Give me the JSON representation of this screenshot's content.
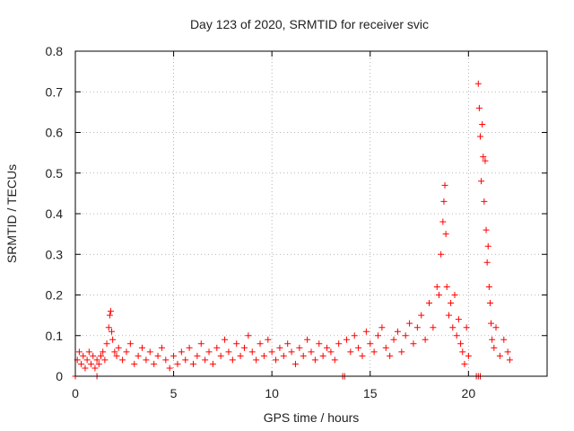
{
  "chart_data": {
    "type": "scatter",
    "title": "Day 123 of 2020, SRMTID for receiver svic",
    "xlabel": "GPS time / hours",
    "ylabel": "SRMTID / TECUs",
    "xlim": [
      0,
      24
    ],
    "ylim": [
      0,
      0.8
    ],
    "xticks": [
      0,
      5,
      10,
      15,
      20
    ],
    "xtick_labels": [
      "0",
      "5",
      "10",
      "15",
      "20"
    ],
    "yticks": [
      0,
      0.1,
      0.2,
      0.3,
      0.4,
      0.5,
      0.6,
      0.7,
      0.8
    ],
    "ytick_labels": [
      "0",
      "0.1",
      "0.2",
      "0.3",
      "0.4",
      "0.5",
      "0.6",
      "0.7",
      "0.8"
    ],
    "grid": true,
    "marker": "+",
    "color": "#ff0000",
    "series": [
      {
        "name": "SRMTID",
        "x": [
          0.1,
          0.2,
          0.3,
          0.4,
          0.5,
          0.6,
          0.7,
          0.8,
          0.9,
          1.0,
          1.1,
          1.2,
          1.3,
          1.4,
          1.5,
          1.6,
          1.7,
          1.75,
          1.8,
          1.85,
          1.9,
          2.0,
          2.1,
          2.2,
          2.4,
          2.6,
          2.8,
          3.0,
          3.2,
          3.4,
          3.6,
          3.8,
          4.0,
          4.2,
          4.4,
          4.6,
          4.8,
          5.0,
          5.2,
          5.4,
          5.6,
          5.8,
          6.0,
          6.2,
          6.4,
          6.6,
          6.8,
          7.0,
          7.2,
          7.4,
          7.6,
          7.8,
          8.0,
          8.2,
          8.4,
          8.6,
          8.8,
          9.0,
          9.2,
          9.4,
          9.6,
          9.8,
          10.0,
          10.2,
          10.4,
          10.6,
          10.8,
          11.0,
          11.2,
          11.4,
          11.6,
          11.8,
          12.0,
          12.2,
          12.4,
          12.6,
          12.8,
          13.0,
          13.2,
          13.4,
          13.8,
          14.0,
          14.2,
          14.4,
          14.6,
          14.8,
          15.0,
          15.2,
          15.4,
          15.6,
          15.8,
          16.0,
          16.2,
          16.4,
          16.6,
          16.8,
          17.0,
          17.2,
          17.4,
          17.6,
          17.8,
          18.0,
          18.2,
          18.4,
          18.5,
          18.6,
          18.7,
          18.75,
          18.8,
          18.85,
          18.9,
          19.0,
          19.1,
          19.2,
          19.3,
          19.4,
          19.5,
          19.6,
          19.7,
          19.8,
          19.9,
          20.0,
          20.5,
          20.55,
          20.6,
          20.65,
          20.7,
          20.75,
          20.8,
          20.85,
          20.9,
          20.95,
          21.0,
          21.05,
          21.1,
          21.15,
          21.2,
          21.3,
          21.4,
          21.6,
          21.8,
          22.0,
          22.1,
          0.0,
          1.1,
          13.6,
          13.7,
          20.4,
          20.5,
          20.6
        ],
        "y": [
          0.04,
          0.06,
          0.03,
          0.05,
          0.02,
          0.04,
          0.06,
          0.03,
          0.05,
          0.02,
          0.04,
          0.03,
          0.05,
          0.06,
          0.04,
          0.08,
          0.12,
          0.15,
          0.16,
          0.11,
          0.09,
          0.06,
          0.05,
          0.07,
          0.04,
          0.06,
          0.08,
          0.03,
          0.05,
          0.07,
          0.04,
          0.06,
          0.03,
          0.05,
          0.07,
          0.04,
          0.02,
          0.05,
          0.03,
          0.06,
          0.04,
          0.07,
          0.03,
          0.05,
          0.08,
          0.04,
          0.06,
          0.03,
          0.07,
          0.05,
          0.09,
          0.06,
          0.04,
          0.08,
          0.05,
          0.07,
          0.1,
          0.06,
          0.04,
          0.08,
          0.05,
          0.09,
          0.06,
          0.04,
          0.07,
          0.05,
          0.08,
          0.06,
          0.03,
          0.07,
          0.05,
          0.09,
          0.06,
          0.04,
          0.08,
          0.05,
          0.07,
          0.06,
          0.04,
          0.08,
          0.09,
          0.06,
          0.1,
          0.07,
          0.05,
          0.11,
          0.08,
          0.06,
          0.1,
          0.12,
          0.07,
          0.05,
          0.09,
          0.11,
          0.06,
          0.1,
          0.13,
          0.08,
          0.12,
          0.15,
          0.09,
          0.18,
          0.12,
          0.22,
          0.2,
          0.3,
          0.38,
          0.43,
          0.47,
          0.35,
          0.22,
          0.15,
          0.18,
          0.12,
          0.2,
          0.1,
          0.14,
          0.08,
          0.06,
          0.03,
          0.12,
          0.05,
          0.72,
          0.66,
          0.59,
          0.48,
          0.62,
          0.54,
          0.43,
          0.53,
          0.36,
          0.28,
          0.32,
          0.22,
          0.18,
          0.13,
          0.09,
          0.07,
          0.12,
          0.05,
          0.09,
          0.06,
          0.04,
          0.0,
          0.0,
          0.0,
          0.0,
          0.0,
          0.0,
          0.0
        ]
      }
    ]
  }
}
